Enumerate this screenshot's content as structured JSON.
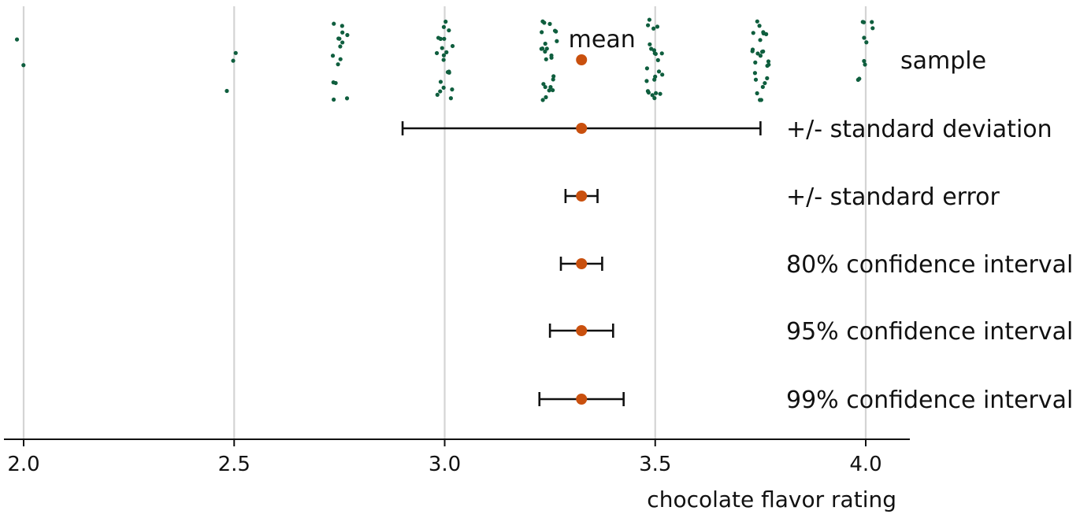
{
  "chart_data": {
    "type": "scatter",
    "xlabel": "chocolate flavor rating",
    "xlim": [
      1.98,
      4.1
    ],
    "x_ticks": [
      2.0,
      2.5,
      3.0,
      3.5,
      4.0
    ],
    "x_tick_labels": [
      "2.0",
      "2.5",
      "3.0",
      "3.5",
      "4.0"
    ],
    "grid": "vertical",
    "colors": {
      "points": "#0f5e3e",
      "mean": "#c9500e",
      "bars": "#111111",
      "grid": "#d4d4d4"
    },
    "mean_label": "mean",
    "sample_label": "sample",
    "mean": 3.325,
    "sample": [
      2.0,
      2.0,
      2.5,
      2.5,
      2.5,
      2.75,
      2.75,
      2.75,
      2.75,
      2.75,
      2.75,
      2.75,
      2.75,
      2.75,
      2.75,
      2.75,
      2.75,
      2.75,
      2.75,
      2.75,
      3.0,
      3.0,
      3.0,
      3.0,
      3.0,
      3.0,
      3.0,
      3.0,
      3.0,
      3.0,
      3.0,
      3.0,
      3.0,
      3.0,
      3.0,
      3.0,
      3.0,
      3.0,
      3.0,
      3.0,
      3.0,
      3.25,
      3.25,
      3.25,
      3.25,
      3.25,
      3.25,
      3.25,
      3.25,
      3.25,
      3.25,
      3.25,
      3.25,
      3.25,
      3.25,
      3.25,
      3.25,
      3.25,
      3.25,
      3.25,
      3.25,
      3.25,
      3.25,
      3.25,
      3.25,
      3.5,
      3.5,
      3.5,
      3.5,
      3.5,
      3.5,
      3.5,
      3.5,
      3.5,
      3.5,
      3.5,
      3.5,
      3.5,
      3.5,
      3.5,
      3.5,
      3.5,
      3.5,
      3.5,
      3.5,
      3.5,
      3.5,
      3.5,
      3.75,
      3.75,
      3.75,
      3.75,
      3.75,
      3.75,
      3.75,
      3.75,
      3.75,
      3.75,
      3.75,
      3.75,
      3.75,
      3.75,
      3.75,
      3.75,
      3.75,
      3.75,
      3.75,
      3.75,
      3.75,
      3.75,
      3.75,
      3.75,
      3.75,
      4.0,
      4.0,
      4.0,
      4.0,
      4.0,
      4.0,
      4.0,
      4.0,
      4.0,
      4.0
    ],
    "intervals": [
      {
        "label": "+/- standard deviation",
        "low": 2.9,
        "high": 3.75
      },
      {
        "label": "+/- standard error",
        "low": 3.287,
        "high": 3.363
      },
      {
        "label": "80% confidence interval",
        "low": 3.276,
        "high": 3.374
      },
      {
        "label": "95% confidence interval",
        "low": 3.25,
        "high": 3.4
      },
      {
        "label": "99% confidence interval",
        "low": 3.225,
        "high": 3.425
      }
    ]
  }
}
